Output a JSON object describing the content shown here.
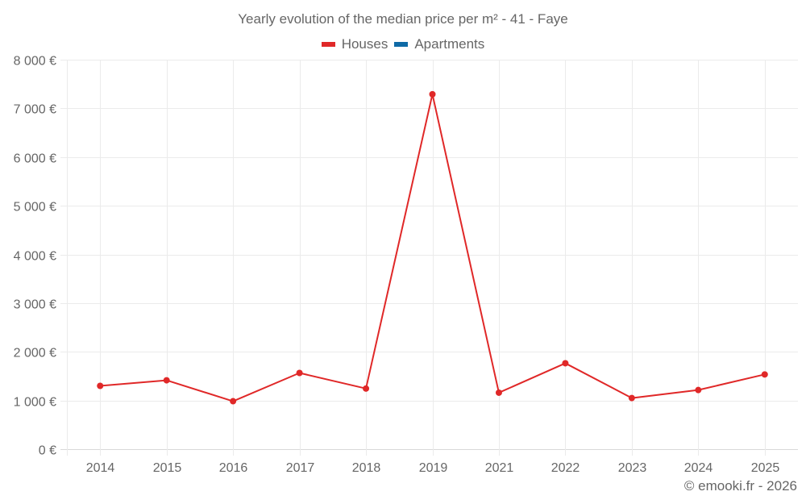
{
  "title": "Yearly evolution of the median price per m² - 41 - Faye",
  "legend": [
    {
      "label": "Houses",
      "color": "#e02828"
    },
    {
      "label": "Apartments",
      "color": "#0f6aa6"
    }
  ],
  "copyright": "© emooki.fr - 2026",
  "chart_data": {
    "type": "line",
    "title": "Yearly evolution of the median price per m² - 41 - Faye",
    "xlabel": "",
    "ylabel": "",
    "categories": [
      "2014",
      "2015",
      "2016",
      "2017",
      "2018",
      "2019",
      "2021",
      "2022",
      "2023",
      "2024",
      "2025"
    ],
    "series": [
      {
        "name": "Houses",
        "color": "#e02828",
        "values": [
          1300,
          1415,
          985,
          1565,
          1245,
          7290,
          1160,
          1765,
          1050,
          1215,
          1535
        ]
      },
      {
        "name": "Apartments",
        "color": "#0f6aa6",
        "values": []
      }
    ],
    "ylim": [
      0,
      8000
    ],
    "yticks": [
      0,
      1000,
      2000,
      3000,
      4000,
      5000,
      6000,
      7000,
      8000
    ],
    "ytick_labels": [
      "0 €",
      "1 000 €",
      "2 000 €",
      "3 000 €",
      "4 000 €",
      "5 000 €",
      "6 000 €",
      "7 000 €",
      "8 000 €"
    ],
    "grid": true,
    "legend_position": "top"
  }
}
